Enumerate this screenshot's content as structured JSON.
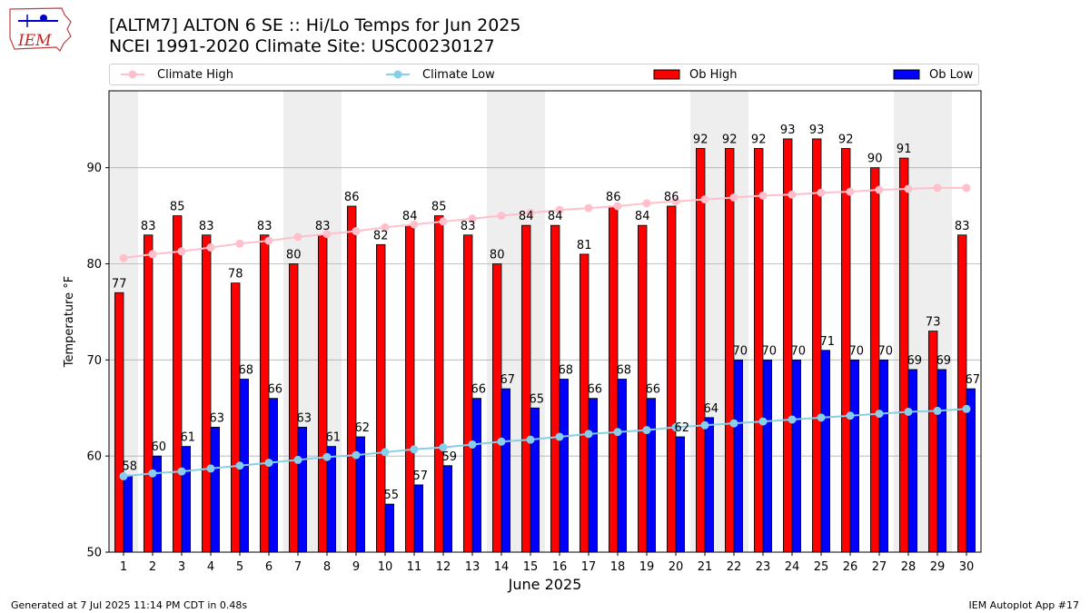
{
  "logo": {
    "text": "IEM"
  },
  "title": {
    "line1": "[ALTM7] ALTON 6 SE :: Hi/Lo Temps for Jun 2025",
    "line2": "NCEI 1991-2020 Climate Site: USC00230127"
  },
  "footer": {
    "left": "Generated at 7 Jul 2025 11:14 PM CDT in 0.48s",
    "right": "IEM Autoplot App #17"
  },
  "colors": {
    "ob_high": "#ff0000",
    "ob_low": "#0000ff",
    "climate_high": "#ffc0cb",
    "climate_low": "#87ceeb",
    "weekend_shade": "#eeeeee"
  },
  "chart_data": {
    "type": "bar",
    "xlabel": "June 2025",
    "ylabel": "Temperature °F",
    "ylim": [
      50,
      98
    ],
    "yticks": [
      50,
      60,
      70,
      80,
      90
    ],
    "grid": "horizontal",
    "legend_position": "top",
    "categories": [
      "1",
      "2",
      "3",
      "4",
      "5",
      "6",
      "7",
      "8",
      "9",
      "10",
      "11",
      "12",
      "13",
      "14",
      "15",
      "16",
      "17",
      "18",
      "19",
      "20",
      "21",
      "22",
      "23",
      "24",
      "25",
      "26",
      "27",
      "28",
      "29",
      "30"
    ],
    "shaded_days": [
      1,
      7,
      8,
      14,
      15,
      21,
      22,
      28,
      29
    ],
    "series": [
      {
        "name": "Climate High",
        "kind": "line",
        "values": [
          80.6,
          81.0,
          81.3,
          81.7,
          82.1,
          82.4,
          82.8,
          83.1,
          83.4,
          83.8,
          84.1,
          84.4,
          84.7,
          85.0,
          85.3,
          85.6,
          85.8,
          86.0,
          86.3,
          86.5,
          86.7,
          86.9,
          87.1,
          87.2,
          87.4,
          87.5,
          87.7,
          87.8,
          87.9,
          87.9
        ]
      },
      {
        "name": "Climate Low",
        "kind": "line",
        "values": [
          57.9,
          58.2,
          58.4,
          58.7,
          59.0,
          59.3,
          59.6,
          59.9,
          60.1,
          60.4,
          60.7,
          60.9,
          61.2,
          61.5,
          61.7,
          62.0,
          62.3,
          62.5,
          62.7,
          63.0,
          63.2,
          63.4,
          63.6,
          63.8,
          64.0,
          64.2,
          64.4,
          64.6,
          64.7,
          64.9
        ]
      },
      {
        "name": "Ob High",
        "kind": "bar",
        "values": [
          77,
          83,
          85,
          83,
          78,
          83,
          80,
          83,
          86,
          82,
          84,
          85,
          83,
          80,
          84,
          84,
          81,
          86,
          84,
          86,
          92,
          92,
          92,
          93,
          93,
          92,
          90,
          91,
          73,
          83
        ]
      },
      {
        "name": "Ob Low",
        "kind": "bar",
        "values": [
          58,
          60,
          61,
          63,
          68,
          66,
          63,
          61,
          62,
          55,
          57,
          59,
          66,
          67,
          65,
          68,
          66,
          68,
          66,
          62,
          64,
          70,
          70,
          70,
          71,
          70,
          70,
          69,
          69,
          67
        ]
      }
    ]
  }
}
